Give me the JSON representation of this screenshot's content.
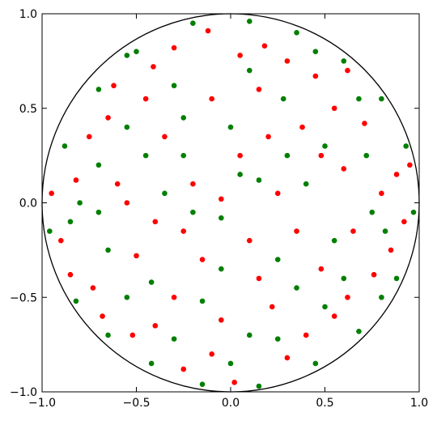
{
  "chart_data": {
    "type": "scatter",
    "xlim": [
      -1,
      1
    ],
    "ylim": [
      -1,
      1
    ],
    "xticks": [
      {
        "value": -1,
        "label": "−1.0"
      },
      {
        "value": -0.5,
        "label": "−0.5"
      },
      {
        "value": 0,
        "label": "0.0"
      },
      0.5,
      {
        "value": 1,
        "label": "1.0"
      }
    ],
    "yticks": [
      {
        "value": -1,
        "label": "−1.0"
      },
      {
        "value": -0.5,
        "label": "−0.5"
      },
      {
        "value": 0,
        "label": "0.0"
      },
      0.5,
      {
        "value": 1,
        "label": "1.0"
      }
    ],
    "grid": false,
    "series": [
      {
        "color": "#ff0000",
        "x": [
          -0.82,
          -0.65,
          -0.41,
          -0.12,
          0.18,
          0.45,
          0.71,
          0.88,
          0.92,
          0.76,
          0.55,
          0.3,
          0.02,
          -0.25,
          -0.52,
          -0.73,
          -0.9,
          -0.6,
          -0.35,
          -0.1,
          0.15,
          0.38,
          0.6,
          0.65,
          0.48,
          0.22,
          -0.05,
          -0.3,
          -0.5,
          -0.55,
          -0.2,
          0.05,
          0.25,
          0.1,
          -0.15,
          -0.4,
          0.35,
          0.8,
          -0.75,
          -0.45,
          0.05,
          0.3,
          0.55,
          0.85,
          0.62,
          0.4,
          -0.1,
          -0.4,
          -0.68,
          -0.85,
          -0.95,
          -0.3,
          0.62,
          0.95,
          0.15,
          -0.25,
          0.48,
          -0.62,
          0.2,
          -0.05
        ],
        "values": [
          0.12,
          0.45,
          0.72,
          0.91,
          0.83,
          0.67,
          0.42,
          0.15,
          -0.1,
          -0.38,
          -0.6,
          -0.82,
          -0.95,
          -0.88,
          -0.7,
          -0.45,
          -0.2,
          0.1,
          0.35,
          0.55,
          0.6,
          0.4,
          0.18,
          -0.15,
          -0.35,
          -0.55,
          -0.62,
          -0.5,
          -0.28,
          0.0,
          0.1,
          0.25,
          0.05,
          -0.2,
          -0.3,
          -0.1,
          -0.15,
          0.05,
          0.35,
          0.55,
          0.78,
          0.75,
          0.5,
          -0.25,
          -0.5,
          -0.7,
          -0.8,
          -0.65,
          -0.6,
          -0.38,
          0.05,
          0.82,
          0.7,
          0.2,
          -0.4,
          -0.15,
          0.25,
          0.62,
          0.35,
          0.02
        ]
      },
      {
        "color": "#007f00",
        "x": [
          -0.88,
          -0.7,
          -0.5,
          -0.2,
          0.1,
          0.35,
          0.6,
          0.8,
          0.93,
          0.97,
          0.88,
          0.68,
          0.45,
          0.15,
          -0.15,
          -0.42,
          -0.65,
          -0.82,
          -0.96,
          -0.7,
          -0.45,
          -0.25,
          0.0,
          0.28,
          0.5,
          0.72,
          0.75,
          0.55,
          0.35,
          0.1,
          -0.15,
          -0.42,
          -0.65,
          -0.7,
          -0.35,
          -0.05,
          0.15,
          0.4,
          0.25,
          -0.05,
          -0.25,
          0.1,
          -0.3,
          -0.55,
          0.45,
          0.68,
          0.82,
          0.6,
          0.25,
          -0.3,
          -0.55,
          -0.8,
          -0.2,
          0.05,
          0.3,
          -0.85,
          0.0,
          0.5,
          -0.55,
          0.8
        ],
        "values": [
          0.3,
          0.6,
          0.8,
          0.95,
          0.96,
          0.9,
          0.75,
          0.55,
          0.3,
          -0.05,
          -0.4,
          -0.68,
          -0.85,
          -0.97,
          -0.96,
          -0.85,
          -0.7,
          -0.52,
          -0.15,
          0.2,
          0.25,
          0.45,
          0.4,
          0.55,
          0.3,
          0.25,
          -0.05,
          -0.2,
          -0.45,
          -0.7,
          -0.52,
          -0.42,
          -0.25,
          -0.05,
          0.05,
          -0.08,
          0.12,
          0.1,
          -0.3,
          -0.35,
          0.25,
          0.7,
          0.62,
          0.4,
          0.8,
          0.55,
          -0.15,
          -0.4,
          -0.72,
          -0.72,
          -0.5,
          0.0,
          -0.05,
          0.15,
          0.25,
          -0.1,
          -0.85,
          -0.55,
          0.78,
          -0.5
        ]
      }
    ]
  }
}
